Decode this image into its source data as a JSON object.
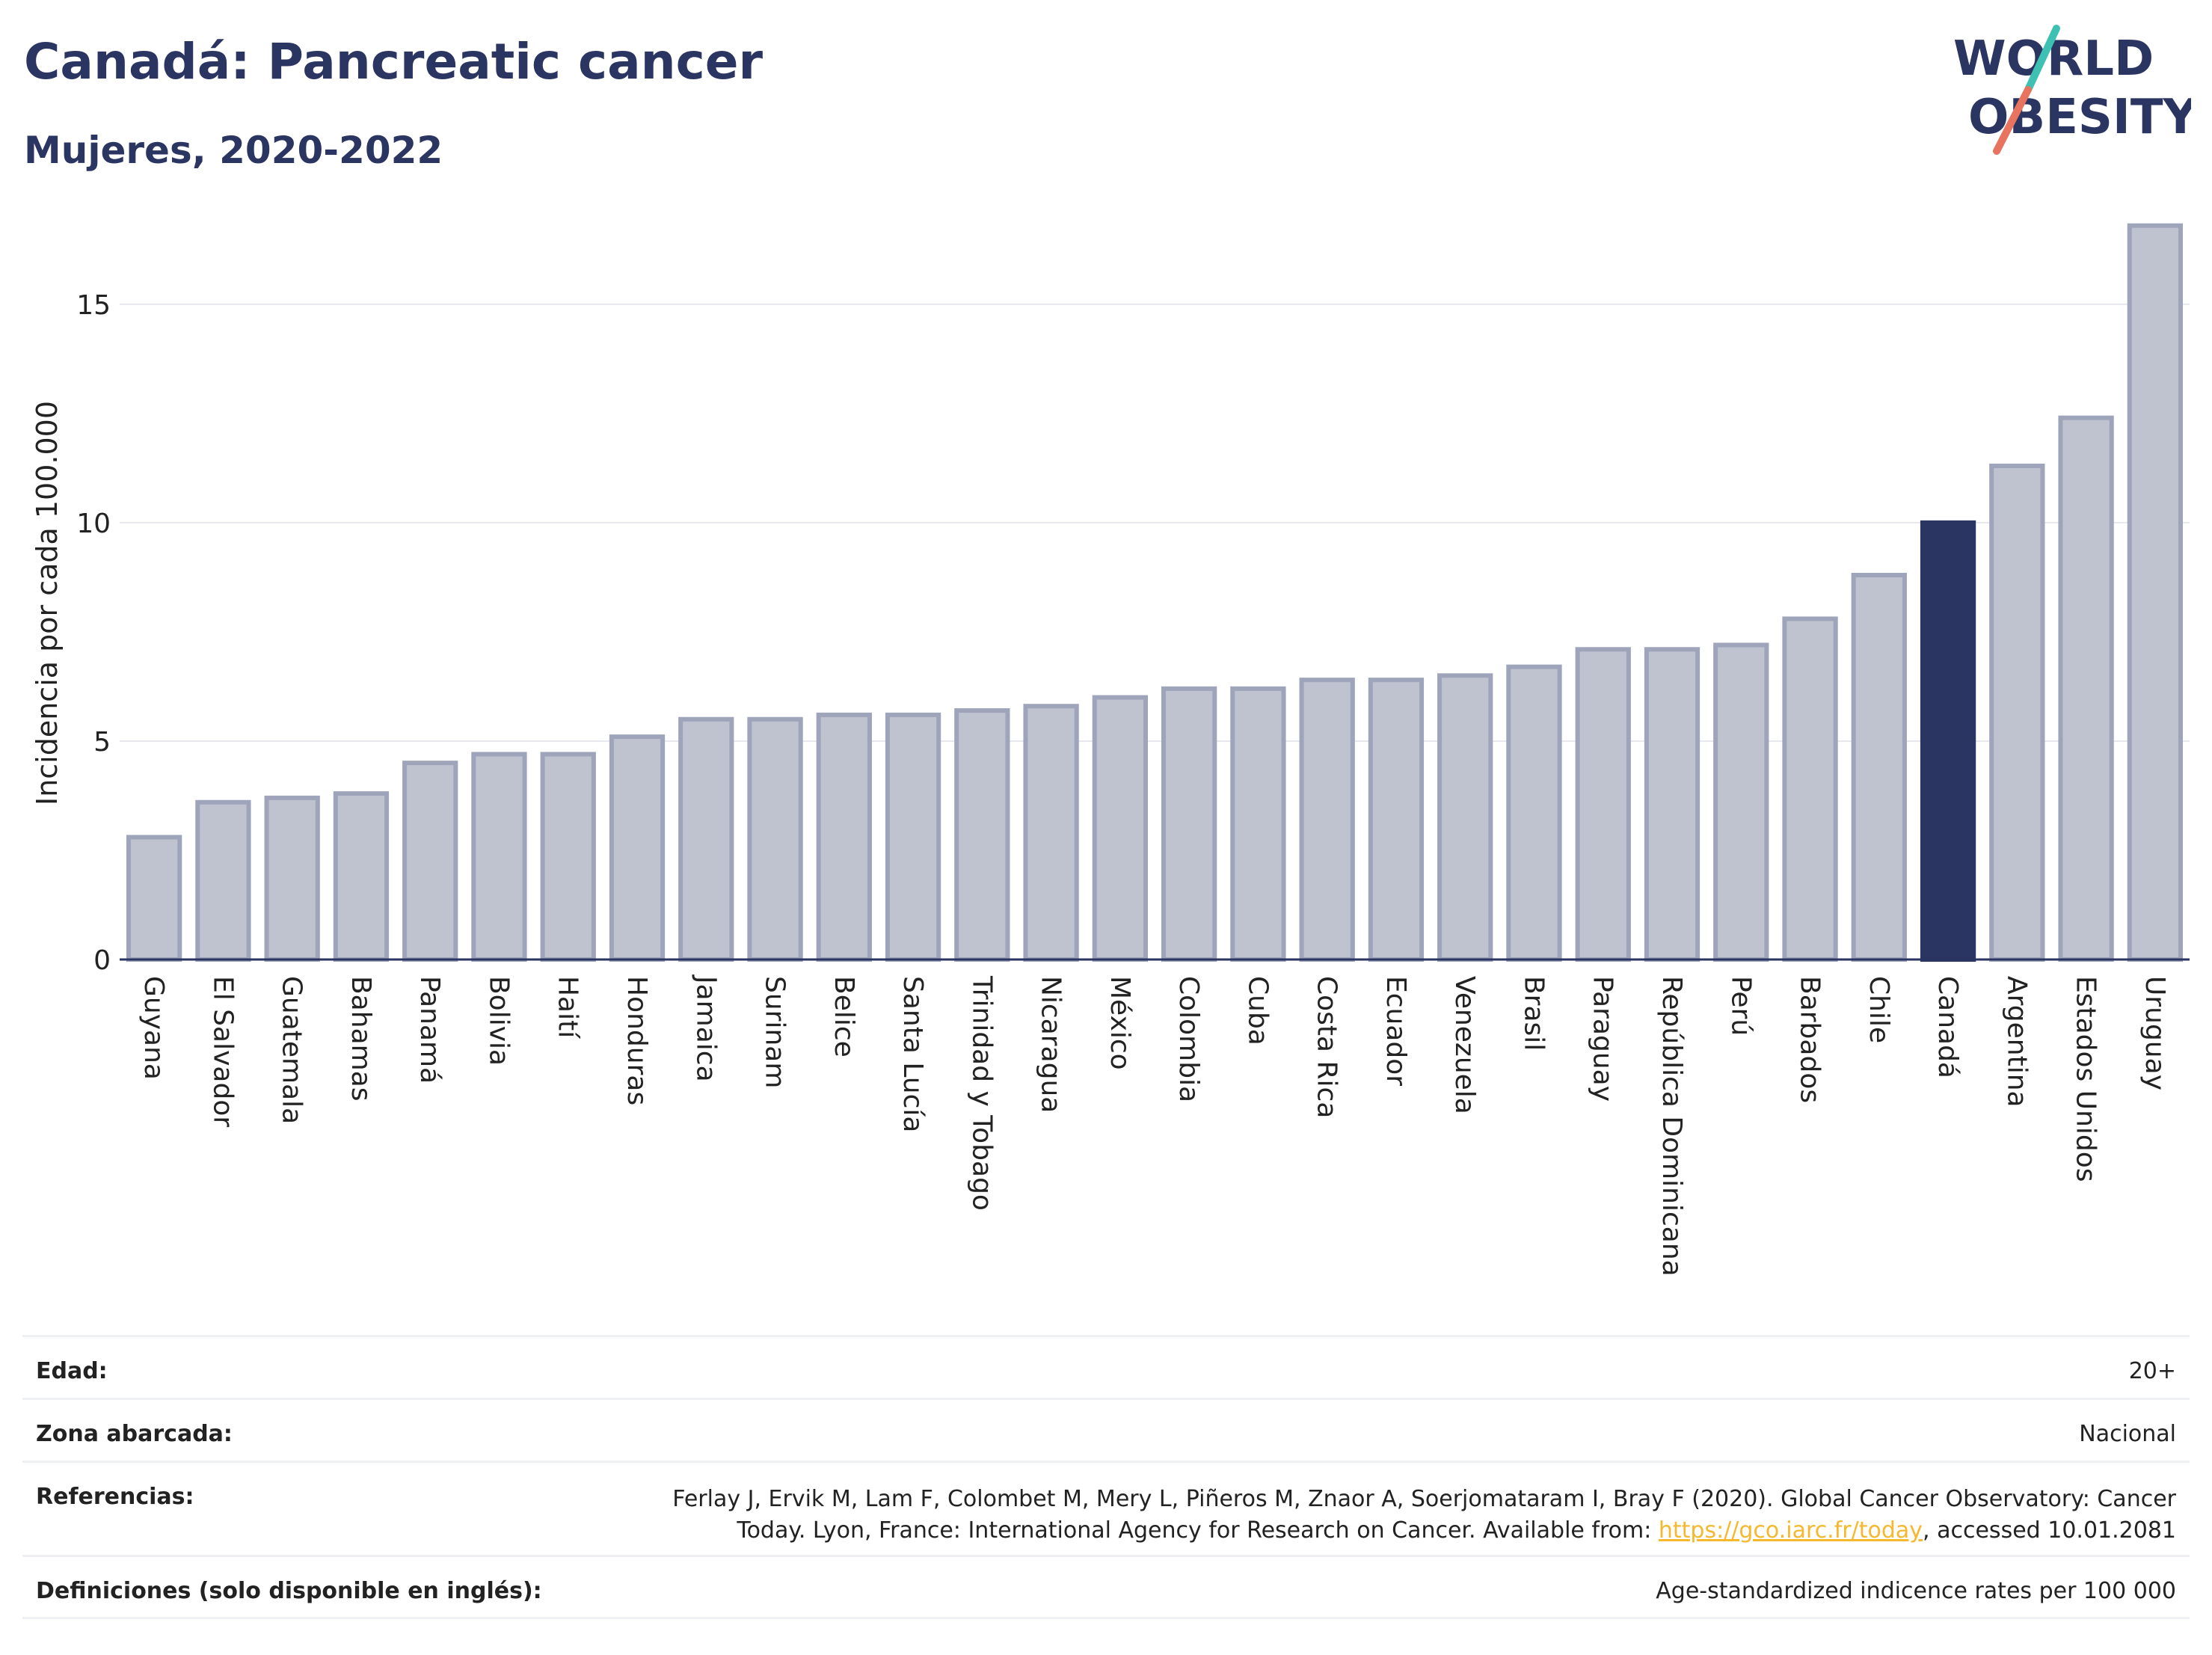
{
  "header": {
    "title": "Canadá: Pancreatic cancer",
    "subtitle": "Mujeres, 2020-2022"
  },
  "logo": {
    "line1": "WORLD",
    "line2": "OBESITY",
    "colors": {
      "text": "#2b3561",
      "slash_top": "#3ec1b3",
      "slash_bottom": "#e8735f"
    }
  },
  "chart_data": {
    "type": "bar",
    "ylabel": "Incidencia por cada 100.000",
    "xlabel": "",
    "ylim": [
      0,
      17
    ],
    "yticks": [
      0,
      5,
      10,
      15
    ],
    "grid": true,
    "highlight": "Canadá",
    "colors": {
      "bar": "#bfc3d0",
      "bar_edge": "#9ea4ba",
      "highlight": "#2b3561"
    },
    "categories": [
      "Guyana",
      "El Salvador",
      "Guatemala",
      "Bahamas",
      "Panamá",
      "Bolivia",
      "Haití",
      "Honduras",
      "Jamaica",
      "Surinam",
      "Belice",
      "Santa Lucía",
      "Trinidad y Tobago",
      "Nicaragua",
      "México",
      "Colombia",
      "Cuba",
      "Costa Rica",
      "Ecuador",
      "Venezuela",
      "Brasil",
      "Paraguay",
      "República Dominicana",
      "Perú",
      "Barbados",
      "Chile",
      "Canadá",
      "Argentina",
      "Estados Unidos",
      "Uruguay"
    ],
    "values": [
      2.8,
      3.6,
      3.7,
      3.8,
      4.5,
      4.7,
      4.7,
      5.1,
      5.5,
      5.5,
      5.6,
      5.6,
      5.7,
      5.8,
      6.0,
      6.2,
      6.2,
      6.4,
      6.4,
      6.5,
      6.7,
      7.1,
      7.1,
      7.2,
      7.8,
      8.8,
      10.0,
      11.3,
      12.4,
      16.8
    ]
  },
  "info": {
    "age_label": "Edad:",
    "age_value": "20+",
    "area_label": "Zona abarcada:",
    "area_value": "Nacional",
    "refs_label": "Referencias:",
    "refs_line1": "Ferlay J, Ervik M, Lam F, Colombet M, Mery L, Piñeros M, Znaor A, Soerjomataram I, Bray F (2020). Global Cancer Observatory: Cancer",
    "refs_line2_pre": "Today. Lyon, France: International Agency for Research on Cancer. Available from: ",
    "refs_link": "https://gco.iarc.fr/today",
    "refs_line2_post": ", accessed 10.01.2081",
    "defs_label": "Definiciones (solo disponible en inglés):",
    "defs_value": "Age-standardized indicence rates per 100 000"
  }
}
